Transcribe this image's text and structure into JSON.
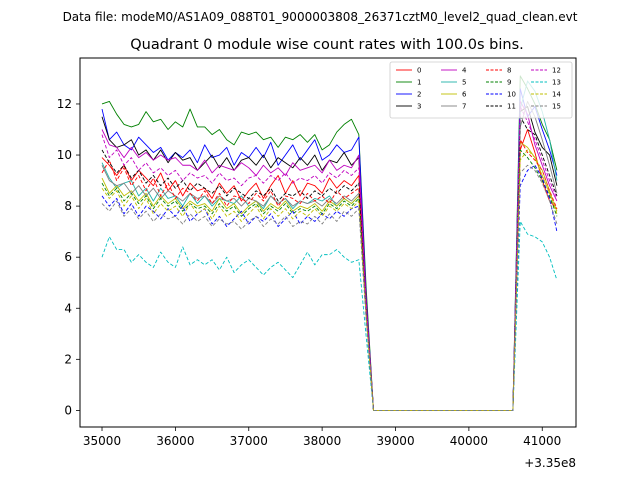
{
  "figure": {
    "suptitle": "Data file: modeM0/AS1A09_088T01_9000003808_26371cztM0_level2_quad_clean.evt",
    "x_offset_label": "+3.35e8"
  },
  "chart_data": {
    "type": "line",
    "title": "Quadrant 0 module wise count rates with 100.0s bins.",
    "xlabel": "",
    "ylabel": "",
    "x_offset": 335000000,
    "xlim": [
      34700,
      41460
    ],
    "ylim": [
      -0.65,
      13.8
    ],
    "xticks": [
      35000,
      36000,
      37000,
      38000,
      39000,
      40000,
      41000
    ],
    "yticks": [
      0,
      2,
      4,
      6,
      8,
      10,
      12
    ],
    "grid": false,
    "legend_position": "top-right",
    "legend_columns": 4,
    "x": [
      35000,
      35100,
      35200,
      35300,
      35400,
      35500,
      35600,
      35700,
      35800,
      35900,
      36000,
      36100,
      36200,
      36300,
      36400,
      36500,
      36600,
      36700,
      36800,
      36900,
      37000,
      37100,
      37200,
      37300,
      37400,
      37500,
      37600,
      37700,
      37800,
      37900,
      38000,
      38100,
      38200,
      38300,
      38400,
      38500,
      38600,
      38700,
      38800,
      38900,
      39000,
      39100,
      39200,
      39300,
      39400,
      39500,
      39600,
      39700,
      39800,
      39900,
      40000,
      40100,
      40200,
      40300,
      40400,
      40500,
      40600,
      40700,
      40800,
      40900,
      41000,
      41100,
      41200
    ],
    "gap_zero_value": 0,
    "series": [
      {
        "name": "0",
        "color": "#ff0000",
        "dashed": false,
        "values": [
          9.9,
          9.6,
          9.2,
          9.6,
          9.0,
          9.4,
          9.1,
          8.8,
          9.3,
          8.6,
          9.0,
          8.4,
          8.9,
          8.6,
          8.7,
          8.3,
          8.9,
          8.5,
          8.8,
          8.2,
          8.6,
          8.9,
          8.3,
          8.8,
          9.2,
          8.5,
          9.0,
          8.4,
          8.9,
          8.8,
          8.5,
          9.1,
          8.7,
          9.0,
          8.8,
          9.2,
          4.1,
          0,
          0,
          0,
          0,
          0,
          0,
          0,
          0,
          0,
          0,
          0,
          0,
          0,
          0,
          0,
          0,
          0,
          0,
          0,
          0,
          10.2,
          11.0,
          10.1,
          9.0,
          8.2,
          7.9
        ]
      },
      {
        "name": "1",
        "color": "#008000",
        "dashed": false,
        "values": [
          12.0,
          12.1,
          11.6,
          11.2,
          11.1,
          11.2,
          11.7,
          11.3,
          11.4,
          11.0,
          11.3,
          11.1,
          11.8,
          11.1,
          11.1,
          10.8,
          11.0,
          10.6,
          10.4,
          10.9,
          10.8,
          10.9,
          10.6,
          10.7,
          10.3,
          10.7,
          10.6,
          10.8,
          10.5,
          10.8,
          10.2,
          10.4,
          10.9,
          11.2,
          11.4,
          10.8,
          4.8,
          0,
          0,
          0,
          0,
          0,
          0,
          0,
          0,
          0,
          0,
          0,
          0,
          0,
          0,
          0,
          0,
          0,
          0,
          0,
          0,
          13.1,
          12.6,
          12.0,
          11.2,
          10.6,
          9.4
        ]
      },
      {
        "name": "2",
        "color": "#0000ff",
        "dashed": false,
        "values": [
          11.8,
          10.6,
          10.9,
          10.4,
          10.2,
          10.7,
          10.4,
          10.1,
          10.3,
          9.8,
          10.1,
          9.9,
          10.2,
          9.7,
          10.4,
          9.9,
          10.0,
          10.3,
          9.6,
          10.1,
          9.9,
          10.3,
          9.9,
          10.5,
          9.6,
          10.0,
          10.4,
          9.8,
          10.2,
          10.6,
          9.8,
          10.0,
          10.4,
          10.1,
          10.2,
          10.7,
          4.5,
          0,
          0,
          0,
          0,
          0,
          0,
          0,
          0,
          0,
          0,
          0,
          0,
          0,
          0,
          0,
          0,
          0,
          0,
          0,
          0,
          12.6,
          11.5,
          11.9,
          11.0,
          10.2,
          9.2
        ]
      },
      {
        "name": "3",
        "color": "#000000",
        "dashed": false,
        "values": [
          11.5,
          10.6,
          10.3,
          10.4,
          10.6,
          10.0,
          10.2,
          9.8,
          10.2,
          9.7,
          10.1,
          9.8,
          9.9,
          9.4,
          9.7,
          10.0,
          9.5,
          9.9,
          9.4,
          9.8,
          9.9,
          9.6,
          10.0,
          9.5,
          9.9,
          9.7,
          9.5,
          9.9,
          9.6,
          10.0,
          9.4,
          9.8,
          9.7,
          10.1,
          9.6,
          9.9,
          4.3,
          0,
          0,
          0,
          0,
          0,
          0,
          0,
          0,
          0,
          0,
          0,
          0,
          0,
          0,
          0,
          0,
          0,
          0,
          0,
          0,
          11.7,
          11.9,
          10.9,
          10.3,
          10.0,
          8.8
        ]
      },
      {
        "name": "4",
        "color": "#bf00bf",
        "dashed": false,
        "values": [
          11.0,
          10.4,
          10.3,
          9.9,
          10.3,
          9.9,
          10.1,
          9.8,
          10.0,
          9.8,
          9.9,
          9.6,
          9.6,
          9.4,
          9.8,
          9.3,
          9.6,
          9.5,
          9.4,
          9.7,
          9.5,
          9.2,
          9.6,
          9.3,
          9.5,
          9.2,
          9.7,
          9.4,
          9.5,
          9.6,
          9.3,
          9.8,
          9.4,
          9.6,
          9.5,
          10.0,
          4.3,
          0,
          0,
          0,
          0,
          0,
          0,
          0,
          0,
          0,
          0,
          0,
          0,
          0,
          0,
          0,
          0,
          0,
          0,
          0,
          0,
          12.1,
          11.6,
          10.4,
          9.6,
          8.8,
          8.2
        ]
      },
      {
        "name": "5",
        "color": "#20b2aa",
        "dashed": false,
        "values": [
          9.7,
          9.1,
          8.7,
          8.9,
          9.0,
          8.4,
          8.7,
          8.2,
          8.7,
          8.3,
          8.4,
          8.0,
          8.5,
          8.1,
          8.4,
          8.0,
          8.3,
          8.2,
          8.1,
          8.4,
          8.0,
          8.2,
          7.9,
          8.4,
          8.1,
          8.3,
          7.9,
          8.2,
          8.1,
          8.3,
          8.2,
          8.4,
          8.0,
          8.3,
          8.1,
          8.4,
          3.9,
          0,
          0,
          0,
          0,
          0,
          0,
          0,
          0,
          0,
          0,
          0,
          0,
          0,
          0,
          0,
          0,
          0,
          0,
          0,
          0,
          11.8,
          12.9,
          12.5,
          11.7,
          10.6,
          9.0
        ]
      },
      {
        "name": "6",
        "color": "#bfbf00",
        "dashed": false,
        "values": [
          9.1,
          8.5,
          8.8,
          8.4,
          8.6,
          8.2,
          8.5,
          8.0,
          8.4,
          8.1,
          8.3,
          7.9,
          8.2,
          8.0,
          8.1,
          7.8,
          8.3,
          7.9,
          8.1,
          7.7,
          8.0,
          8.2,
          7.8,
          8.1,
          7.9,
          8.2,
          7.8,
          8.0,
          7.9,
          8.1,
          7.8,
          8.2,
          8.0,
          8.3,
          8.1,
          8.4,
          3.8,
          0,
          0,
          0,
          0,
          0,
          0,
          0,
          0,
          0,
          0,
          0,
          0,
          0,
          0,
          0,
          0,
          0,
          0,
          0,
          0,
          10.5,
          10.3,
          9.9,
          9.2,
          8.5,
          7.8
        ]
      },
      {
        "name": "7",
        "color": "#808080",
        "dashed": false,
        "values": [
          9.6,
          9.0,
          8.8,
          8.9,
          8.5,
          8.8,
          8.4,
          8.7,
          8.3,
          8.6,
          8.4,
          8.2,
          8.5,
          8.3,
          8.4,
          8.1,
          8.4,
          8.2,
          8.3,
          8.0,
          8.3,
          8.2,
          8.0,
          8.4,
          8.1,
          8.3,
          8.0,
          8.2,
          8.1,
          8.2,
          8.0,
          8.3,
          8.1,
          8.4,
          8.2,
          8.5,
          3.9,
          0,
          0,
          0,
          0,
          0,
          0,
          0,
          0,
          0,
          0,
          0,
          0,
          0,
          0,
          0,
          0,
          0,
          0,
          0,
          0,
          11.1,
          12.1,
          11.5,
          10.6,
          9.6,
          8.5
        ]
      },
      {
        "name": "8",
        "color": "#ff0000",
        "dashed": true,
        "values": [
          9.3,
          9.8,
          9.0,
          9.5,
          8.8,
          9.2,
          8.6,
          9.1,
          8.4,
          8.9,
          8.3,
          8.7,
          8.5,
          8.2,
          8.6,
          8.1,
          8.5,
          8.0,
          8.4,
          8.3,
          8.1,
          8.5,
          8.2,
          8.6,
          8.0,
          8.4,
          8.3,
          8.1,
          8.5,
          8.2,
          8.4,
          8.1,
          8.6,
          8.3,
          8.5,
          8.7,
          4.0,
          0,
          0,
          0,
          0,
          0,
          0,
          0,
          0,
          0,
          0,
          0,
          0,
          0,
          0,
          0,
          0,
          0,
          0,
          0,
          0,
          10.6,
          10.1,
          9.8,
          9.4,
          8.6,
          7.9
        ]
      },
      {
        "name": "9",
        "color": "#008000",
        "dashed": true,
        "values": [
          8.9,
          8.4,
          8.7,
          8.2,
          8.5,
          8.1,
          8.4,
          7.9,
          8.3,
          8.0,
          8.2,
          7.8,
          8.1,
          7.9,
          8.0,
          7.7,
          8.1,
          7.8,
          8.0,
          7.6,
          7.9,
          8.1,
          7.7,
          8.0,
          7.8,
          8.1,
          7.7,
          7.9,
          7.8,
          8.0,
          7.7,
          8.1,
          7.9,
          8.2,
          8.0,
          8.3,
          3.8,
          0,
          0,
          0,
          0,
          0,
          0,
          0,
          0,
          0,
          0,
          0,
          0,
          0,
          0,
          0,
          0,
          0,
          0,
          0,
          0,
          10.2,
          9.9,
          9.5,
          9.0,
          8.4,
          7.6
        ]
      },
      {
        "name": "10",
        "color": "#0000ff",
        "dashed": true,
        "values": [
          8.4,
          8.0,
          8.3,
          7.7,
          8.1,
          7.6,
          8.0,
          7.8,
          7.5,
          7.9,
          7.6,
          8.0,
          7.4,
          7.7,
          7.9,
          7.3,
          7.6,
          7.2,
          7.5,
          7.8,
          7.3,
          7.6,
          7.4,
          7.7,
          7.2,
          7.5,
          7.8,
          7.3,
          7.6,
          7.4,
          7.7,
          7.5,
          7.8,
          7.6,
          7.9,
          8.0,
          3.6,
          0,
          0,
          0,
          0,
          0,
          0,
          0,
          0,
          0,
          0,
          0,
          0,
          0,
          0,
          0,
          0,
          0,
          0,
          0,
          0,
          8.8,
          9.4,
          9.6,
          9.1,
          8.3,
          7.0
        ]
      },
      {
        "name": "11",
        "color": "#000000",
        "dashed": true,
        "values": [
          10.2,
          9.7,
          9.3,
          9.6,
          9.1,
          9.4,
          8.9,
          9.2,
          8.8,
          9.1,
          8.7,
          9.0,
          8.6,
          8.9,
          8.7,
          8.5,
          8.8,
          8.4,
          8.7,
          8.5,
          8.3,
          8.6,
          8.4,
          8.7,
          8.2,
          8.5,
          8.4,
          8.6,
          8.3,
          8.6,
          8.4,
          8.7,
          8.5,
          8.8,
          8.6,
          8.9,
          4.0,
          0,
          0,
          0,
          0,
          0,
          0,
          0,
          0,
          0,
          0,
          0,
          0,
          0,
          0,
          0,
          0,
          0,
          0,
          0,
          0,
          11.5,
          11.0,
          10.8,
          10.0,
          9.2,
          8.4
        ]
      },
      {
        "name": "12",
        "color": "#bf00bf",
        "dashed": true,
        "values": [
          10.8,
          9.9,
          10.2,
          9.6,
          9.9,
          9.4,
          9.7,
          9.3,
          9.5,
          9.2,
          9.4,
          9.0,
          9.3,
          9.1,
          9.2,
          8.9,
          9.3,
          9.0,
          9.1,
          8.8,
          9.1,
          9.2,
          8.9,
          9.2,
          9.0,
          9.3,
          8.9,
          9.1,
          9.0,
          9.2,
          8.9,
          9.3,
          9.1,
          9.4,
          9.2,
          9.5,
          4.2,
          0,
          0,
          0,
          0,
          0,
          0,
          0,
          0,
          0,
          0,
          0,
          0,
          0,
          0,
          0,
          0,
          0,
          0,
          0,
          0,
          11.9,
          11.3,
          10.6,
          9.8,
          9.0,
          8.3
        ]
      },
      {
        "name": "13",
        "color": "#00bfbf",
        "dashed": true,
        "values": [
          6.0,
          6.8,
          6.3,
          6.3,
          5.8,
          6.1,
          5.8,
          5.6,
          6.2,
          5.8,
          5.6,
          6.4,
          5.7,
          5.9,
          5.7,
          5.9,
          5.5,
          6.0,
          5.4,
          5.7,
          5.9,
          5.6,
          5.3,
          5.6,
          5.8,
          5.5,
          5.2,
          5.7,
          6.2,
          5.7,
          6.1,
          6.1,
          6.3,
          6.0,
          5.8,
          5.9,
          2.9,
          0,
          0,
          0,
          0,
          0,
          0,
          0,
          0,
          0,
          0,
          0,
          0,
          0,
          0,
          0,
          0,
          0,
          0,
          0,
          0,
          7.4,
          6.9,
          6.8,
          6.6,
          6.0,
          5.1
        ]
      },
      {
        "name": "14",
        "color": "#bfbf00",
        "dashed": true,
        "values": [
          8.7,
          8.3,
          8.6,
          8.0,
          8.4,
          7.9,
          8.3,
          7.7,
          8.1,
          7.8,
          8.0,
          7.6,
          8.1,
          7.7,
          7.9,
          7.5,
          8.0,
          7.6,
          7.8,
          7.4,
          7.7,
          8.0,
          7.5,
          7.9,
          7.6,
          7.9,
          7.5,
          7.8,
          7.6,
          7.9,
          7.6,
          8.0,
          7.8,
          8.1,
          7.9,
          8.2,
          3.7,
          0,
          0,
          0,
          0,
          0,
          0,
          0,
          0,
          0,
          0,
          0,
          0,
          0,
          0,
          0,
          0,
          0,
          0,
          0,
          0,
          9.8,
          10.2,
          9.9,
          9.4,
          8.6,
          7.7
        ]
      },
      {
        "name": "15",
        "color": "#808080",
        "dashed": true,
        "values": [
          8.1,
          7.8,
          8.2,
          7.6,
          7.9,
          7.5,
          7.8,
          7.4,
          7.7,
          7.5,
          7.6,
          7.3,
          7.7,
          7.4,
          7.6,
          7.2,
          7.5,
          7.3,
          7.4,
          7.1,
          7.4,
          7.6,
          7.2,
          7.5,
          7.3,
          7.6,
          7.2,
          7.4,
          7.3,
          7.6,
          7.3,
          7.7,
          7.4,
          7.8,
          7.6,
          7.9,
          3.6,
          0,
          0,
          0,
          0,
          0,
          0,
          0,
          0,
          0,
          0,
          0,
          0,
          0,
          0,
          0,
          0,
          0,
          0,
          0,
          0,
          9.3,
          9.6,
          9.4,
          8.9,
          8.2,
          7.3
        ]
      }
    ]
  }
}
